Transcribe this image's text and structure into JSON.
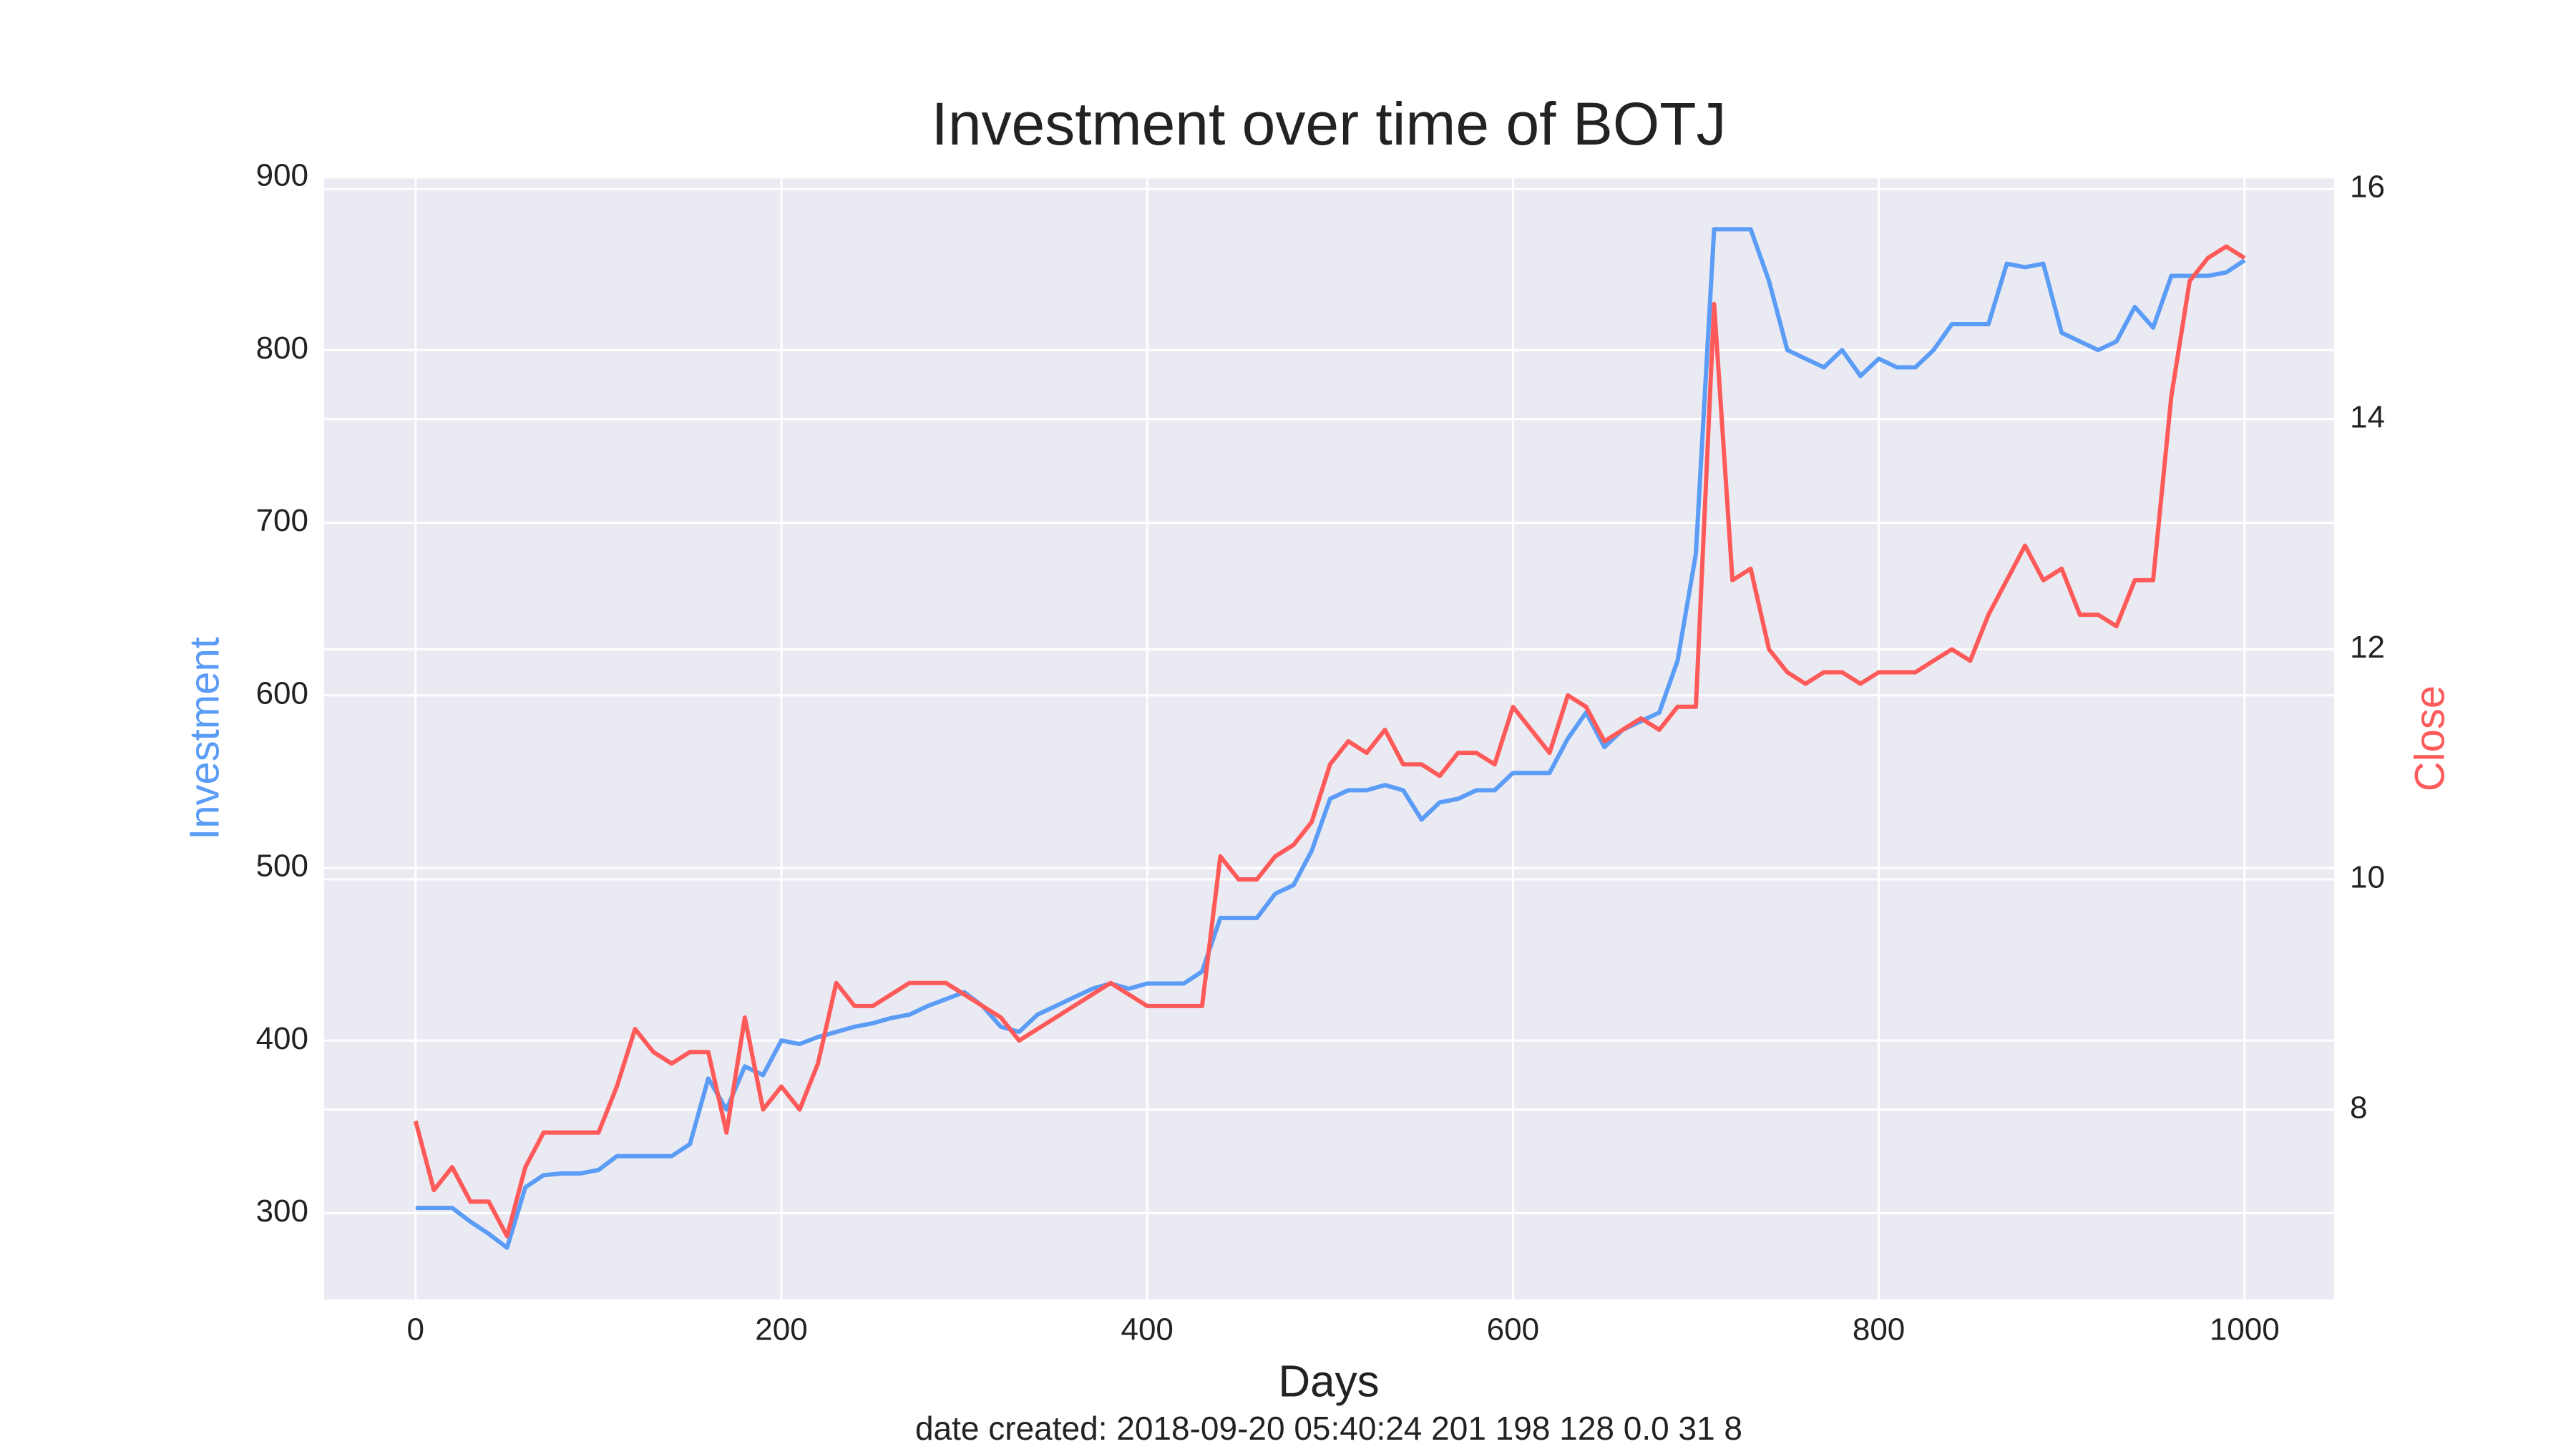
{
  "chart_data": {
    "type": "line",
    "title": "Investment over time of BOTJ",
    "xlabel": "Days",
    "ylabel": "Investment",
    "y2label": "Close",
    "caption": "date created: 2018-09-20 05:40:24 201 198 128 0.0 31 8",
    "x": [
      0,
      10,
      20,
      30,
      40,
      50,
      60,
      70,
      80,
      90,
      100,
      110,
      120,
      130,
      140,
      150,
      160,
      170,
      180,
      190,
      200,
      210,
      220,
      230,
      240,
      250,
      260,
      270,
      280,
      290,
      300,
      310,
      320,
      330,
      340,
      350,
      360,
      370,
      380,
      390,
      400,
      410,
      420,
      430,
      440,
      450,
      460,
      470,
      480,
      490,
      500,
      510,
      520,
      530,
      540,
      550,
      560,
      570,
      580,
      590,
      600,
      610,
      620,
      630,
      640,
      650,
      660,
      670,
      680,
      690,
      700,
      710,
      720,
      730,
      740,
      750,
      760,
      770,
      780,
      790,
      800,
      810,
      820,
      830,
      840,
      850,
      860,
      870,
      880,
      890,
      900,
      910,
      920,
      930,
      940,
      950,
      960,
      970,
      980,
      990,
      1000
    ],
    "series": [
      {
        "name": "Investment",
        "color": "#5b9cf6",
        "axis": "y",
        "values": [
          303,
          303,
          303,
          295,
          288,
          280,
          315,
          322,
          323,
          323,
          325,
          333,
          333,
          333,
          333,
          340,
          378,
          360,
          385,
          380,
          400,
          398,
          402,
          405,
          408,
          410,
          413,
          415,
          420,
          424,
          428,
          420,
          408,
          405,
          415,
          420,
          425,
          430,
          433,
          430,
          433,
          433,
          433,
          440,
          471,
          471,
          471,
          485,
          490,
          510,
          540,
          545,
          545,
          548,
          545,
          528,
          538,
          540,
          545,
          545,
          555,
          555,
          555,
          575,
          590,
          570,
          580,
          585,
          590,
          620,
          682,
          870,
          870,
          870,
          840,
          800,
          795,
          790,
          800,
          785,
          795,
          790,
          790,
          800,
          815,
          815,
          815,
          850,
          848,
          850,
          810,
          805,
          800,
          805,
          825,
          813,
          843,
          843,
          843,
          845,
          852
        ]
      },
      {
        "name": "Close",
        "color": "#ff5a5a",
        "axis": "y2",
        "values": [
          7.9,
          7.3,
          7.5,
          7.2,
          7.2,
          6.9,
          7.5,
          7.8,
          7.8,
          7.8,
          7.8,
          8.2,
          8.7,
          8.5,
          8.4,
          8.5,
          8.5,
          7.8,
          8.8,
          8.0,
          8.2,
          8.0,
          8.4,
          9.1,
          8.9,
          8.9,
          9.0,
          9.1,
          9.1,
          9.1,
          9.0,
          8.9,
          8.8,
          8.6,
          8.7,
          8.8,
          8.9,
          9.0,
          9.1,
          9.0,
          8.9,
          8.9,
          8.9,
          8.9,
          10.2,
          10.0,
          10.0,
          10.2,
          10.3,
          10.5,
          11.0,
          11.2,
          11.1,
          11.3,
          11.0,
          11.0,
          10.9,
          11.1,
          11.1,
          11.0,
          11.5,
          11.3,
          11.1,
          11.6,
          11.5,
          11.2,
          11.3,
          11.4,
          11.3,
          11.5,
          11.5,
          15.0,
          12.6,
          12.7,
          12.0,
          11.8,
          11.7,
          11.8,
          11.8,
          11.7,
          11.8,
          11.8,
          11.8,
          11.9,
          12.0,
          11.9,
          12.3,
          12.6,
          12.9,
          12.6,
          12.7,
          12.3,
          12.3,
          12.2,
          12.6,
          12.6,
          14.2,
          15.2,
          15.4,
          15.5,
          15.4
        ]
      }
    ],
    "xlim": [
      -50,
      1049
    ],
    "xticks": [
      0,
      200,
      400,
      600,
      800,
      1000
    ],
    "ylim": [
      250,
      900
    ],
    "yticks": [
      300,
      400,
      500,
      600,
      700,
      800,
      900
    ],
    "y2lim": [
      6.35,
      16.1
    ],
    "y2ticks": [
      8,
      10,
      12,
      14,
      16
    ],
    "grid": true
  }
}
